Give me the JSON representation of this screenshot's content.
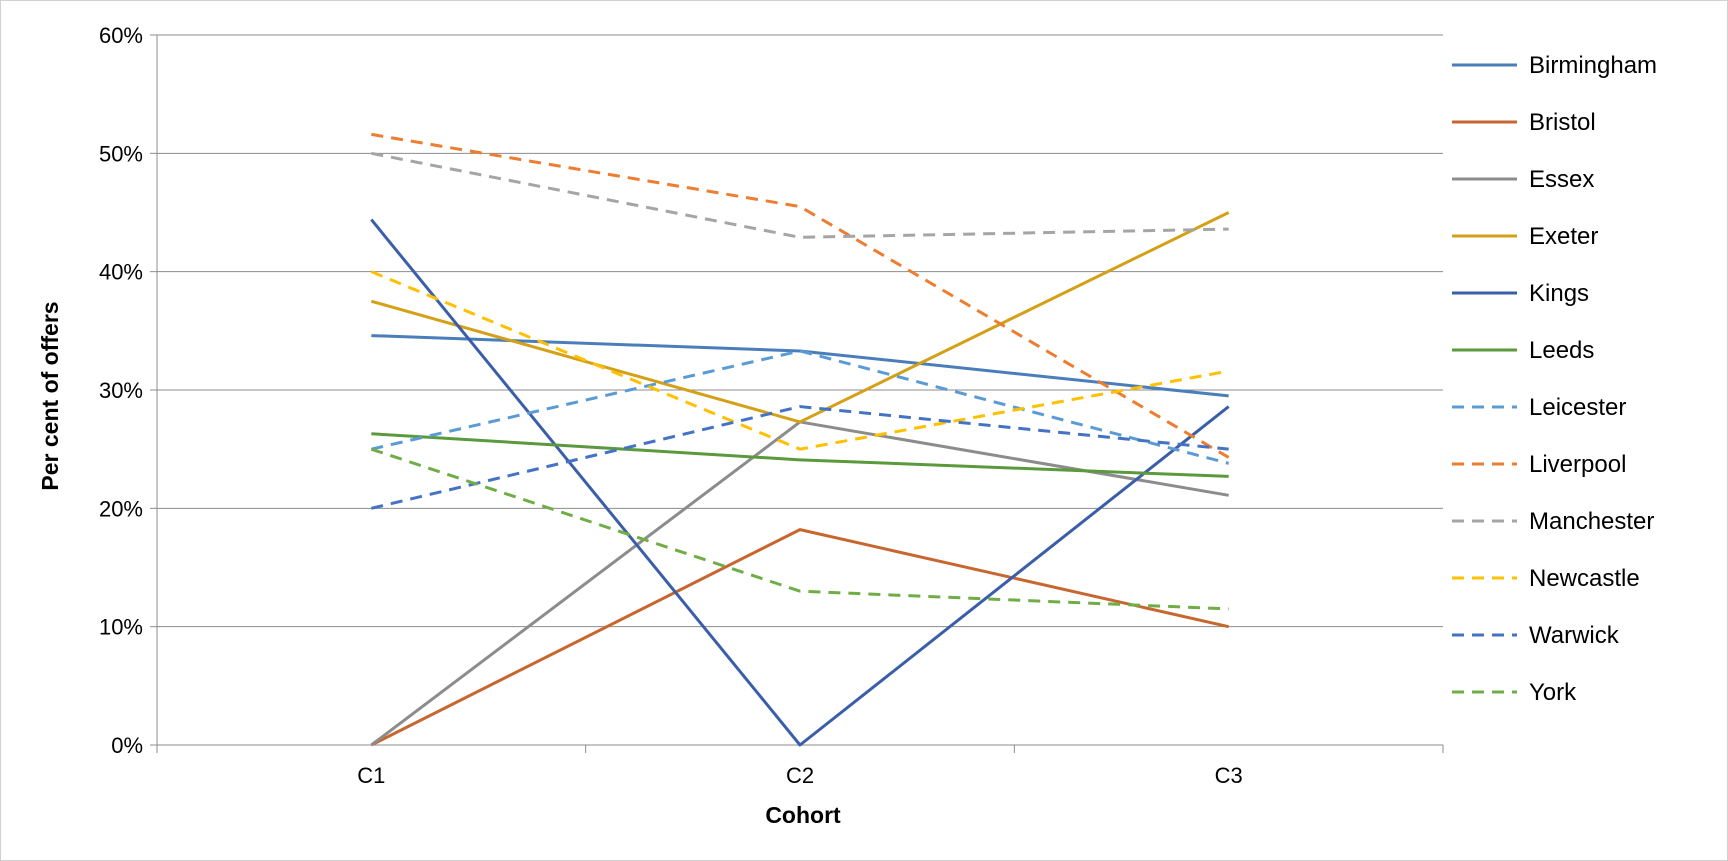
{
  "chart_data": {
    "type": "line",
    "title": "",
    "xlabel": "Cohort",
    "ylabel": "Per cent of offers",
    "categories": [
      "C1",
      "C2",
      "C3"
    ],
    "ylim": [
      0,
      60
    ],
    "yticks": [
      0,
      10,
      20,
      30,
      40,
      50,
      60
    ],
    "ytick_labels": [
      "0%",
      "10%",
      "20%",
      "30%",
      "40%",
      "50%",
      "60%"
    ],
    "grid": true,
    "legend_position": "right",
    "series": [
      {
        "name": "Birmingham",
        "values": [
          34.6,
          33.3,
          29.5
        ],
        "color": "#4a7ebb",
        "dashed": false
      },
      {
        "name": "Bristol",
        "values": [
          0,
          18.2,
          10.0
        ],
        "color": "#c8662f",
        "dashed": false
      },
      {
        "name": "Essex",
        "values": [
          0,
          27.3,
          21.1
        ],
        "color": "#8c8c8c",
        "dashed": false
      },
      {
        "name": "Exeter",
        "values": [
          37.5,
          27.3,
          45.0
        ],
        "color": "#d4a017",
        "dashed": false
      },
      {
        "name": "Kings",
        "values": [
          44.4,
          0,
          28.6
        ],
        "color": "#3a5ea8",
        "dashed": false
      },
      {
        "name": "Leeds",
        "values": [
          26.3,
          24.1,
          22.7
        ],
        "color": "#5a9a3c",
        "dashed": false
      },
      {
        "name": "Leicester",
        "values": [
          25.0,
          33.3,
          23.8
        ],
        "color": "#5b9bd5",
        "dashed": true
      },
      {
        "name": "Liverpool",
        "values": [
          51.6,
          45.5,
          24.3
        ],
        "color": "#ed7d31",
        "dashed": true
      },
      {
        "name": "Manchester",
        "values": [
          50.0,
          42.9,
          43.6
        ],
        "color": "#a5a5a5",
        "dashed": true
      },
      {
        "name": "Newcastle",
        "values": [
          40.0,
          25.0,
          31.6
        ],
        "color": "#ffc000",
        "dashed": true
      },
      {
        "name": "Warwick",
        "values": [
          20.0,
          28.6,
          25.0
        ],
        "color": "#4472c4",
        "dashed": true
      },
      {
        "name": "York",
        "values": [
          25.0,
          13.0,
          11.5
        ],
        "color": "#70ad47",
        "dashed": true
      }
    ]
  }
}
